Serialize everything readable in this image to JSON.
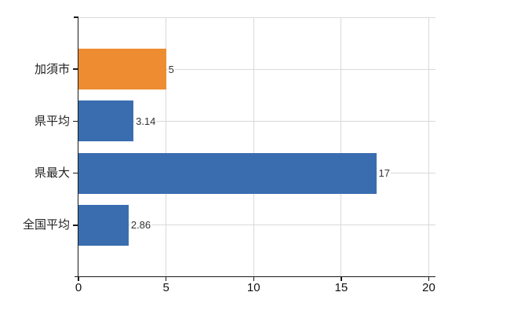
{
  "chart_data": {
    "type": "bar",
    "orientation": "horizontal",
    "title": "",
    "categories": [
      "加須市",
      "県平均",
      "県最大",
      "全国平均"
    ],
    "values": [
      5,
      3.14,
      17,
      2.86
    ],
    "value_labels": [
      "5",
      "3.14",
      "17",
      "2.86"
    ],
    "highlight_category": "加須市",
    "series": [
      {
        "name": "value",
        "values": [
          5,
          3.14,
          17,
          2.86
        ]
      }
    ],
    "xlim": [
      0,
      20
    ],
    "x_ticks": [
      0,
      5,
      10,
      15,
      20
    ],
    "x_tick_labels": [
      "0",
      "5",
      "10",
      "15",
      "20"
    ],
    "grid": true,
    "legend": "none",
    "colors": {
      "highlight_bar": "#ED8C31",
      "default_bar": "#3A6DB0",
      "gridline": "#D9D9D9",
      "axis": "#1A1A1A",
      "category_label": "#222222",
      "value_label": "#333333",
      "tick_label": "#111111",
      "background": "#FFFFFF"
    }
  }
}
